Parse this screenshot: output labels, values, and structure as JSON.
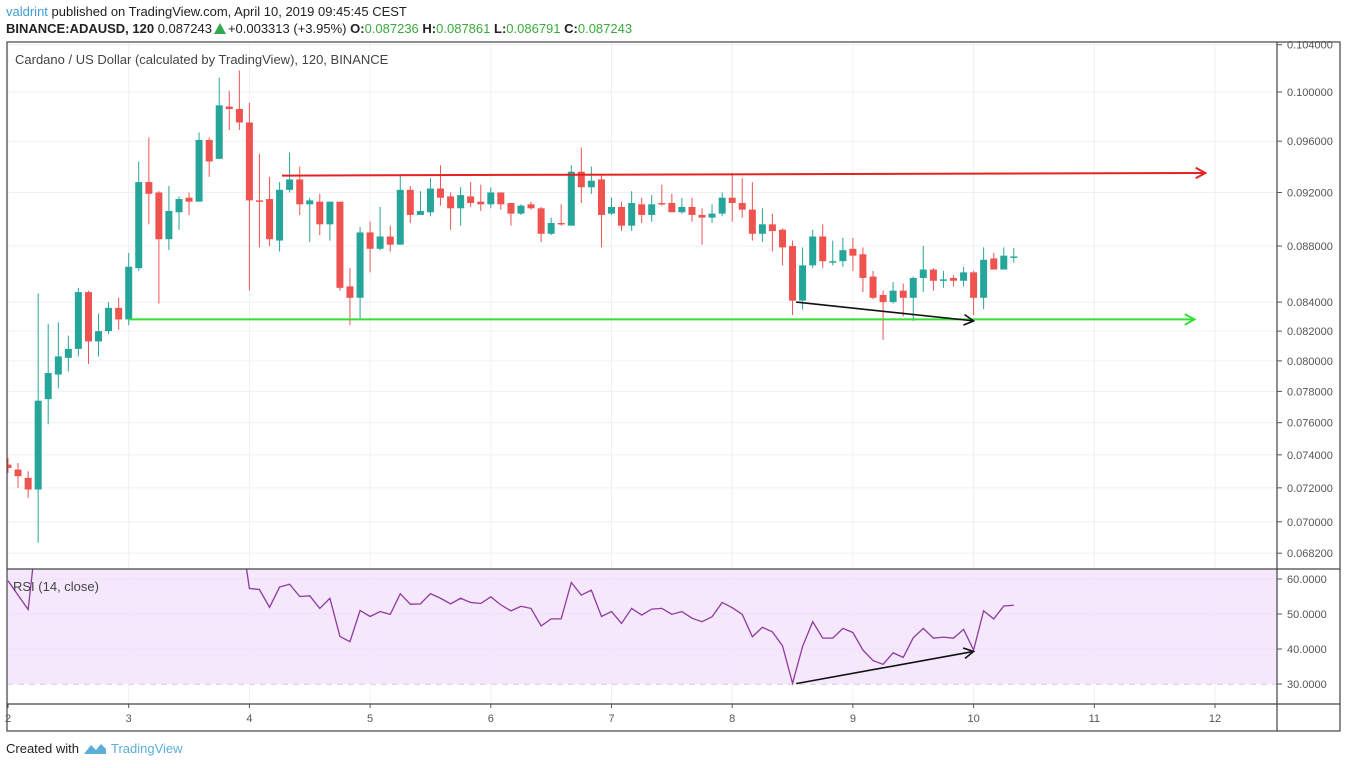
{
  "header": {
    "author": "valdrint",
    "published_text": "published on TradingView.com, April 10, 2019 09:45:45 CEST",
    "symbol": "BINANCE:ADAUSD, 120",
    "last": "0.087243",
    "change": "+0.003313 (+3.95%)",
    "o_label": "O:",
    "o": "0.087236",
    "h_label": "H:",
    "h": "0.087861",
    "l_label": "L:",
    "l": "0.086791",
    "c_label": "C:",
    "c": "0.087243"
  },
  "footer": {
    "created_with": "Created with",
    "brand": "TradingView"
  },
  "colors": {
    "up": "#26a69a",
    "down": "#ef5350",
    "resistance": "#e52222",
    "support": "#33e033",
    "divergence": "#111111",
    "rsi_line": "#8e3b9e",
    "rsi_band": "#f3e3fc"
  },
  "chart_data": [
    {
      "type": "candlestick",
      "title": "Cardano / US Dollar (calculated by TradingView), 120, BINANCE",
      "x_ticks": [
        "2",
        "3",
        "4",
        "5",
        "6",
        "7",
        "8",
        "9",
        "10",
        "11",
        "12"
      ],
      "xlim": [
        2,
        12.5
      ],
      "y_scale": "log",
      "y_ticks": [
        "0.104000",
        "0.100000",
        "0.096000",
        "0.092000",
        "0.088000",
        "0.084000",
        "0.082000",
        "0.080000",
        "0.078000",
        "0.076000",
        "0.074000",
        "0.072000",
        "0.070000",
        "0.068200"
      ],
      "ylim": [
        0.0666,
        0.1043
      ],
      "grid": true,
      "candle_fields": [
        "day",
        "open",
        "high",
        "low",
        "close"
      ],
      "candles": [
        [
          2.0,
          0.0734,
          0.0738,
          0.0729,
          0.0732
        ],
        [
          2.083,
          0.0731,
          0.0735,
          0.072,
          0.0727
        ],
        [
          2.167,
          0.0726,
          0.073,
          0.0714,
          0.0719
        ],
        [
          2.25,
          0.0719,
          0.0846,
          0.0688,
          0.0774
        ],
        [
          2.333,
          0.0775,
          0.0825,
          0.0759,
          0.0792
        ],
        [
          2.417,
          0.0791,
          0.0826,
          0.0782,
          0.0803
        ],
        [
          2.5,
          0.0802,
          0.0817,
          0.0793,
          0.0808
        ],
        [
          2.583,
          0.0808,
          0.085,
          0.0803,
          0.0847
        ],
        [
          2.667,
          0.0847,
          0.0848,
          0.0798,
          0.0813
        ],
        [
          2.75,
          0.0813,
          0.0832,
          0.0803,
          0.082
        ],
        [
          2.833,
          0.082,
          0.084,
          0.0818,
          0.0836
        ],
        [
          2.917,
          0.0836,
          0.0843,
          0.0821,
          0.0828
        ],
        [
          3.0,
          0.0828,
          0.0875,
          0.0824,
          0.0865
        ],
        [
          3.083,
          0.0864,
          0.0944,
          0.0862,
          0.0928
        ],
        [
          3.167,
          0.0928,
          0.0963,
          0.0896,
          0.0919
        ],
        [
          3.25,
          0.092,
          0.0921,
          0.0839,
          0.0885
        ],
        [
          3.333,
          0.0885,
          0.0925,
          0.0877,
          0.0906
        ],
        [
          3.417,
          0.0905,
          0.0917,
          0.0892,
          0.0915
        ],
        [
          3.5,
          0.0916,
          0.092,
          0.0903,
          0.0913
        ],
        [
          3.583,
          0.0913,
          0.0967,
          0.0913,
          0.0961
        ],
        [
          3.667,
          0.0961,
          0.0963,
          0.0932,
          0.0944
        ],
        [
          3.75,
          0.0946,
          0.1012,
          0.0946,
          0.0989
        ],
        [
          3.833,
          0.0988,
          0.1001,
          0.0969,
          0.0986
        ],
        [
          3.917,
          0.0986,
          0.1018,
          0.0969,
          0.0975
        ],
        [
          4.0,
          0.0975,
          0.0991,
          0.0848,
          0.0914
        ],
        [
          4.083,
          0.0914,
          0.095,
          0.0879,
          0.0913
        ],
        [
          4.167,
          0.0915,
          0.0932,
          0.088,
          0.0885
        ],
        [
          4.25,
          0.0884,
          0.0928,
          0.0876,
          0.0922
        ],
        [
          4.333,
          0.0922,
          0.0951,
          0.092,
          0.093
        ],
        [
          4.417,
          0.093,
          0.094,
          0.0903,
          0.0911
        ],
        [
          4.5,
          0.0911,
          0.0916,
          0.0883,
          0.0914
        ],
        [
          4.583,
          0.0913,
          0.0919,
          0.0888,
          0.0896
        ],
        [
          4.667,
          0.0896,
          0.0913,
          0.0884,
          0.0913
        ],
        [
          4.75,
          0.0913,
          0.0913,
          0.0848,
          0.085
        ],
        [
          4.833,
          0.0851,
          0.0864,
          0.0824,
          0.0843
        ],
        [
          4.917,
          0.0843,
          0.0894,
          0.0828,
          0.089
        ],
        [
          5.0,
          0.089,
          0.0898,
          0.0861,
          0.0878
        ],
        [
          5.083,
          0.0878,
          0.0909,
          0.0877,
          0.0887
        ],
        [
          5.167,
          0.0887,
          0.0895,
          0.0876,
          0.0881
        ],
        [
          5.25,
          0.0881,
          0.0934,
          0.0881,
          0.0922
        ],
        [
          5.333,
          0.0922,
          0.0925,
          0.0897,
          0.0903
        ],
        [
          5.417,
          0.0903,
          0.0921,
          0.0903,
          0.0906
        ],
        [
          5.5,
          0.0905,
          0.0931,
          0.0902,
          0.0923
        ],
        [
          5.583,
          0.0923,
          0.0941,
          0.091,
          0.0916
        ],
        [
          5.667,
          0.0917,
          0.092,
          0.0892,
          0.0908
        ],
        [
          5.75,
          0.0908,
          0.0924,
          0.0895,
          0.0918
        ],
        [
          5.833,
          0.0917,
          0.0928,
          0.0909,
          0.0912
        ],
        [
          5.917,
          0.0913,
          0.0926,
          0.0906,
          0.0911
        ],
        [
          6.0,
          0.0911,
          0.0924,
          0.0908,
          0.092
        ],
        [
          6.083,
          0.092,
          0.092,
          0.0907,
          0.0911
        ],
        [
          6.167,
          0.0912,
          0.0912,
          0.0895,
          0.0904
        ],
        [
          6.25,
          0.0904,
          0.0911,
          0.0903,
          0.091
        ],
        [
          6.333,
          0.0911,
          0.0913,
          0.0907,
          0.0908
        ],
        [
          6.417,
          0.0908,
          0.0909,
          0.0883,
          0.0889
        ],
        [
          6.5,
          0.0889,
          0.0901,
          0.0888,
          0.0897
        ],
        [
          6.583,
          0.0897,
          0.0911,
          0.0895,
          0.0896
        ],
        [
          6.667,
          0.0895,
          0.0941,
          0.0895,
          0.0936
        ],
        [
          6.75,
          0.0936,
          0.0955,
          0.0912,
          0.0924
        ],
        [
          6.833,
          0.0924,
          0.094,
          0.0919,
          0.0929
        ],
        [
          6.917,
          0.093,
          0.0933,
          0.0879,
          0.0903
        ],
        [
          7.0,
          0.0904,
          0.0916,
          0.0903,
          0.0909
        ],
        [
          7.083,
          0.0909,
          0.0913,
          0.0891,
          0.0895
        ],
        [
          7.167,
          0.0895,
          0.0921,
          0.0891,
          0.0912
        ],
        [
          7.25,
          0.0911,
          0.0916,
          0.0897,
          0.0903
        ],
        [
          7.333,
          0.0903,
          0.0918,
          0.0898,
          0.0911
        ],
        [
          7.417,
          0.0912,
          0.0926,
          0.091,
          0.0911
        ],
        [
          7.5,
          0.0912,
          0.0919,
          0.0905,
          0.0905
        ],
        [
          7.583,
          0.0905,
          0.0916,
          0.0904,
          0.0909
        ],
        [
          7.667,
          0.0909,
          0.0916,
          0.0898,
          0.0903
        ],
        [
          7.75,
          0.0903,
          0.0908,
          0.0881,
          0.0901
        ],
        [
          7.833,
          0.0901,
          0.0911,
          0.0897,
          0.0904
        ],
        [
          7.917,
          0.0904,
          0.092,
          0.0902,
          0.0916
        ],
        [
          8.0,
          0.0916,
          0.0935,
          0.0898,
          0.0912
        ],
        [
          8.083,
          0.0912,
          0.0931,
          0.0901,
          0.0907
        ],
        [
          8.167,
          0.0907,
          0.0928,
          0.0884,
          0.0889
        ],
        [
          8.25,
          0.0889,
          0.0908,
          0.0883,
          0.0896
        ],
        [
          8.333,
          0.0896,
          0.0904,
          0.0876,
          0.0891
        ],
        [
          8.417,
          0.0892,
          0.0893,
          0.0866,
          0.0879
        ],
        [
          8.5,
          0.088,
          0.0884,
          0.0831,
          0.0841
        ],
        [
          8.583,
          0.0841,
          0.0879,
          0.0835,
          0.0866
        ],
        [
          8.667,
          0.0866,
          0.0892,
          0.0864,
          0.0887
        ],
        [
          8.75,
          0.0887,
          0.0896,
          0.0864,
          0.0869
        ],
        [
          8.833,
          0.0868,
          0.0884,
          0.0866,
          0.0869
        ],
        [
          8.917,
          0.0869,
          0.0886,
          0.0865,
          0.0877
        ],
        [
          9.0,
          0.0878,
          0.0886,
          0.0862,
          0.0873
        ],
        [
          9.083,
          0.0874,
          0.0879,
          0.0847,
          0.0857
        ],
        [
          9.167,
          0.0858,
          0.0862,
          0.0842,
          0.0843
        ],
        [
          9.25,
          0.0845,
          0.0848,
          0.0814,
          0.084
        ],
        [
          9.333,
          0.084,
          0.0854,
          0.0839,
          0.0848
        ],
        [
          9.417,
          0.0848,
          0.0853,
          0.083,
          0.0843
        ],
        [
          9.5,
          0.0843,
          0.0858,
          0.0827,
          0.0857
        ],
        [
          9.583,
          0.0857,
          0.088,
          0.0847,
          0.0863
        ],
        [
          9.667,
          0.0863,
          0.0864,
          0.0848,
          0.0855
        ],
        [
          9.75,
          0.0855,
          0.0862,
          0.085,
          0.0856
        ],
        [
          9.833,
          0.0857,
          0.0859,
          0.0851,
          0.0855
        ],
        [
          9.917,
          0.0855,
          0.0865,
          0.0851,
          0.0861
        ],
        [
          10.0,
          0.0861,
          0.0862,
          0.0831,
          0.0843
        ],
        [
          10.083,
          0.0843,
          0.0879,
          0.0835,
          0.087
        ],
        [
          10.167,
          0.0871,
          0.0875,
          0.0863,
          0.0863
        ],
        [
          10.25,
          0.0863,
          0.0879,
          0.0863,
          0.0873
        ],
        [
          10.333,
          0.087236,
          0.087861,
          0.086791,
          0.087243
        ]
      ],
      "annotations": [
        {
          "kind": "resistance-arrow",
          "from": [
            4.27,
            0.0933
          ],
          "to": [
            11.92,
            0.0935
          ]
        },
        {
          "kind": "support-arrow",
          "from": [
            3.0,
            0.0828
          ],
          "to": [
            11.83,
            0.0828
          ]
        },
        {
          "kind": "divergence-arrow",
          "from": [
            8.53,
            0.084
          ],
          "to": [
            10.0,
            0.0827
          ]
        }
      ]
    },
    {
      "type": "line",
      "title": "RSI (14, close)",
      "y_ticks": [
        "60.0000",
        "50.0000",
        "40.0000",
        "30.0000"
      ],
      "ylim": [
        24.6,
        62.6
      ],
      "band": [
        30,
        70
      ],
      "x_step_candles": true,
      "values": [
        59.5,
        55.4,
        51.3,
        null,
        null,
        null,
        null,
        null,
        null,
        null,
        null,
        null,
        null,
        null,
        null,
        null,
        null,
        null,
        null,
        null,
        null,
        null,
        null,
        null,
        57.3,
        57.0,
        51.9,
        57.7,
        58.5,
        55.0,
        55.2,
        51.6,
        54.5,
        43.6,
        42.1,
        51.0,
        49.3,
        50.7,
        49.9,
        55.8,
        52.8,
        52.9,
        55.8,
        54.5,
        52.9,
        54.5,
        53.3,
        53.0,
        54.9,
        52.6,
        50.9,
        52.2,
        51.6,
        46.6,
        48.6,
        48.6,
        59.0,
        55.4,
        56.8,
        49.3,
        50.7,
        47.3,
        51.6,
        49.7,
        51.4,
        51.6,
        49.9,
        50.7,
        48.8,
        47.8,
        49.2,
        53.3,
        51.8,
        49.9,
        43.5,
        46.2,
        44.9,
        40.9,
        30.2,
        40.7,
        47.8,
        43.1,
        43.1,
        45.9,
        44.7,
        39.7,
        36.7,
        35.6,
        38.9,
        37.6,
        43.2,
        45.9,
        43.1,
        43.4,
        43.1,
        45.6,
        39.7,
        50.9,
        48.6,
        52.3,
        52.5
      ],
      "annotations": [
        {
          "kind": "divergence-arrow",
          "from": [
            8.53,
            30.1
          ],
          "to": [
            10.0,
            39.3
          ]
        }
      ]
    }
  ]
}
